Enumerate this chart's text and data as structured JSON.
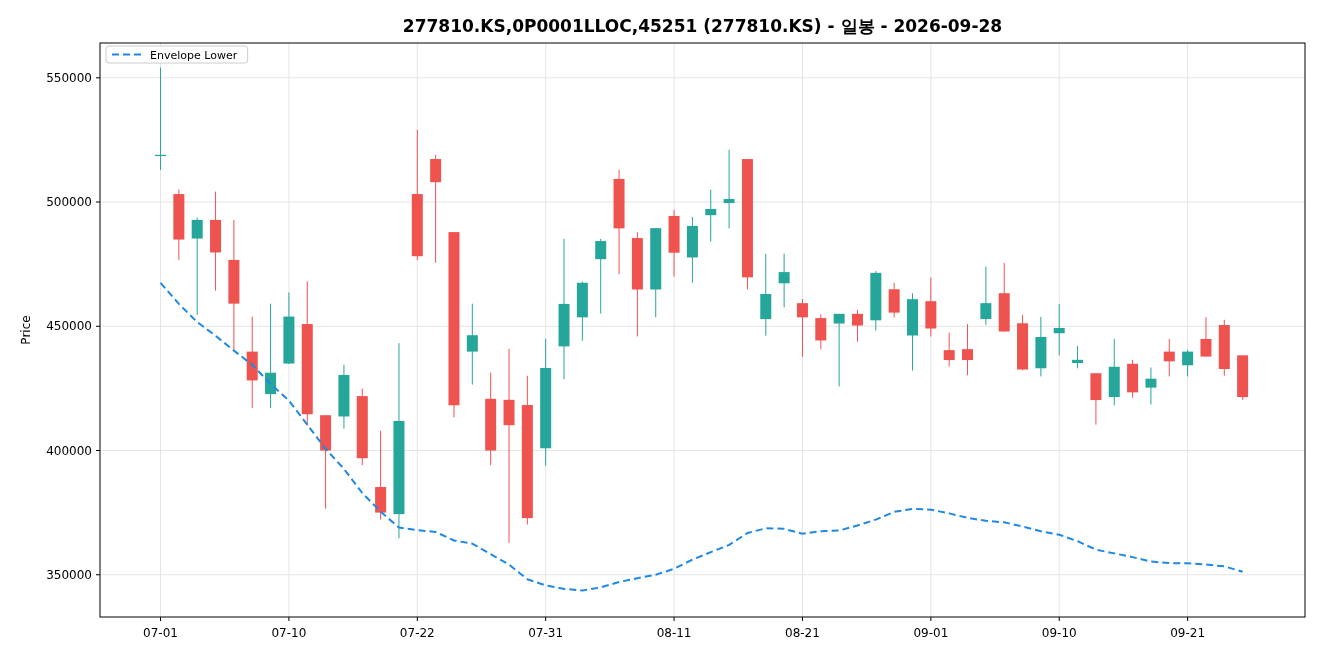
{
  "chart_data": {
    "type": "candlestick",
    "title": "277810.KS,0P0001LLOC,45251 (277810.KS) - 일봉 - 2026-09-28",
    "ylabel": "Price",
    "categories": [
      "07-01",
      null,
      null,
      null,
      null,
      null,
      null,
      "07-10",
      null,
      null,
      null,
      null,
      null,
      null,
      "07-22",
      null,
      null,
      null,
      null,
      null,
      null,
      "07-31",
      null,
      null,
      null,
      null,
      null,
      null,
      "08-11",
      null,
      null,
      null,
      null,
      null,
      null,
      "08-21",
      null,
      null,
      null,
      null,
      null,
      null,
      "09-01",
      null,
      null,
      null,
      null,
      null,
      null,
      "09-10",
      null,
      null,
      null,
      null,
      null,
      null,
      "09-21",
      null,
      null,
      null
    ],
    "ohlc": [
      [
        518500,
        554100,
        512900,
        519000
      ],
      [
        503200,
        505000,
        476700,
        484900
      ],
      [
        485300,
        493700,
        454600,
        492800
      ],
      [
        492800,
        504200,
        464300,
        479700
      ],
      [
        476700,
        492800,
        440200,
        459100
      ],
      [
        439800,
        453900,
        417100,
        428200
      ],
      [
        422700,
        459100,
        417100,
        431300
      ],
      [
        435000,
        463600,
        434800,
        453900
      ],
      [
        450900,
        468100,
        410000,
        414600
      ],
      [
        414200,
        414200,
        376600,
        400000
      ],
      [
        413700,
        434500,
        408800,
        430400
      ],
      [
        421900,
        424900,
        394100,
        396900
      ],
      [
        385300,
        408000,
        372200,
        375000
      ],
      [
        374400,
        443200,
        364700,
        411900
      ],
      [
        503200,
        529100,
        476700,
        478200
      ],
      [
        517300,
        519000,
        475600,
        508000
      ],
      [
        487900,
        487900,
        413300,
        418200
      ],
      [
        439800,
        459100,
        426500,
        446400
      ],
      [
        420800,
        431300,
        394100,
        400000
      ],
      [
        420400,
        440900,
        362800,
        410200
      ],
      [
        418300,
        430100,
        370200,
        372800
      ],
      [
        400900,
        444900,
        393900,
        433200
      ],
      [
        441900,
        485200,
        428600,
        459000
      ],
      [
        453600,
        468000,
        444200,
        467500
      ],
      [
        477000,
        485200,
        455100,
        484300
      ],
      [
        509300,
        513000,
        470900,
        489400
      ],
      [
        485500,
        487900,
        445900,
        464800
      ],
      [
        464800,
        489500,
        453600,
        489500
      ],
      [
        494400,
        496800,
        470000,
        479600
      ],
      [
        477700,
        494000,
        467500,
        490400
      ],
      [
        494700,
        505000,
        484100,
        497200
      ],
      [
        499600,
        521000,
        489400,
        501200
      ],
      [
        517300,
        517300,
        464800,
        469700
      ],
      [
        452900,
        479200,
        446200,
        463000
      ],
      [
        467300,
        479200,
        457600,
        471800
      ],
      [
        459300,
        461000,
        437700,
        453600
      ],
      [
        453300,
        454800,
        440700,
        444300
      ],
      [
        451100,
        455000,
        425800,
        455000
      ],
      [
        455000,
        456600,
        443800,
        450300
      ],
      [
        452400,
        472200,
        448300,
        471500
      ],
      [
        464900,
        467500,
        453500,
        455500
      ],
      [
        446300,
        463300,
        432200,
        460900
      ],
      [
        460100,
        469600,
        445900,
        449100
      ],
      [
        440400,
        447400,
        433800,
        436400
      ],
      [
        440800,
        450900,
        430300,
        436400
      ],
      [
        452900,
        474000,
        450600,
        459300
      ],
      [
        463300,
        475500,
        447900,
        447900
      ],
      [
        451200,
        454500,
        432300,
        432600
      ],
      [
        433100,
        453800,
        429800,
        445700
      ],
      [
        447200,
        459000,
        438300,
        449300
      ],
      [
        435200,
        442100,
        433100,
        436500
      ],
      [
        431100,
        431100,
        410400,
        420300
      ],
      [
        421500,
        444900,
        418200,
        433700
      ],
      [
        434900,
        436500,
        421300,
        423400
      ],
      [
        425300,
        433400,
        418500,
        428900
      ],
      [
        439800,
        444900,
        429800,
        435900
      ],
      [
        434300,
        440500,
        429800,
        439800
      ],
      [
        444900,
        453600,
        437800,
        437800
      ],
      [
        450500,
        452600,
        430100,
        432800
      ],
      [
        438300,
        438300,
        420400,
        421500
      ]
    ],
    "series": [
      {
        "name": "Envelope Lower",
        "type": "line",
        "color": "#1e88e5",
        "line_style": "dashed",
        "values": [
          467500,
          459000,
          451700,
          446200,
          440200,
          434500,
          426800,
          420100,
          410400,
          400700,
          392600,
          382900,
          375400,
          369000,
          368000,
          367200,
          363800,
          362500,
          358300,
          354100,
          348200,
          345700,
          344300,
          343700,
          344900,
          347100,
          348600,
          350000,
          352400,
          356100,
          359100,
          362000,
          366800,
          368700,
          368500,
          366500,
          367500,
          367800,
          369800,
          372200,
          375300,
          376500,
          376200,
          374700,
          372900,
          371700,
          371100,
          369400,
          367500,
          366100,
          363500,
          360100,
          358600,
          357100,
          355300,
          354700,
          354600,
          354100,
          353400,
          351200
        ]
      }
    ],
    "ylim": [
      333000,
      564000
    ],
    "yticks": [
      350000,
      400000,
      450000,
      500000,
      550000
    ],
    "grid": true,
    "legend": "top left"
  }
}
